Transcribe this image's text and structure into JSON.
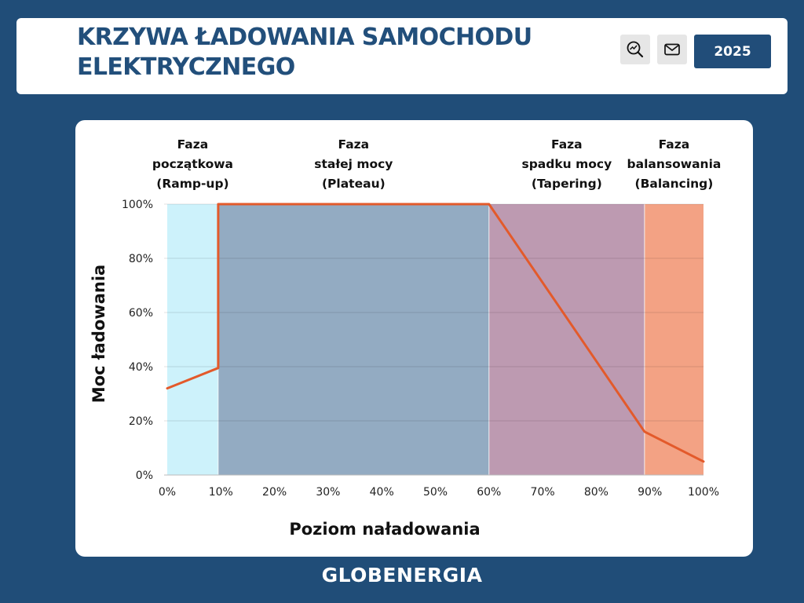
{
  "header": {
    "title": "KRZYWA ŁADOWANIA SAMOCHODU ELEKTRYCZNEGO",
    "year_label": "2025",
    "icons": [
      "search-chart-icon",
      "mail-icon"
    ]
  },
  "footer": {
    "logo_text": "GLOBENERGIA"
  },
  "colors": {
    "background": "#204d78",
    "title": "#224f7b",
    "line": "#e35a2b",
    "rampup": "#cdf2fb",
    "plateau": "#93abc2",
    "tapering": "#bd9ab1",
    "balancing": "#f3a284"
  },
  "chart_data": {
    "type": "line",
    "xlabel": "Poziom naładowania",
    "ylabel": "Moc  ładowania",
    "xlim": [
      0,
      100
    ],
    "ylim": [
      0,
      100
    ],
    "x_ticks": [
      "0%",
      "10%",
      "20%",
      "30%",
      "40%",
      "50%",
      "60%",
      "70%",
      "80%",
      "90%",
      "100%"
    ],
    "y_ticks": [
      "0%",
      "20%",
      "40%",
      "60%",
      "80%",
      "100%"
    ],
    "grid": "horizontal",
    "phases": [
      {
        "name": "Faza początkowa (Ramp-up)",
        "lines": [
          "Faza",
          "początkowa",
          "(Ramp-up)"
        ],
        "x_start": 0,
        "x_end": 9.5,
        "color": "#cdf2fb"
      },
      {
        "name": "Faza stałej mocy (Plateau)",
        "lines": [
          "Faza",
          "stałej mocy",
          "(Plateau)"
        ],
        "x_start": 9.5,
        "x_end": 60,
        "color": "#93abc2"
      },
      {
        "name": "Faza spadku mocy (Tapering)",
        "lines": [
          "Faza",
          "spadku mocy",
          "(Tapering)"
        ],
        "x_start": 60,
        "x_end": 89,
        "color": "#bd9ab1"
      },
      {
        "name": "Faza balansowania (Balancing)",
        "lines": [
          "Faza",
          "balansowania",
          "(Balancing)"
        ],
        "x_start": 89,
        "x_end": 100,
        "color": "#f3a284"
      }
    ],
    "series": [
      {
        "points": [
          [
            0,
            32
          ],
          [
            9.5,
            39.5
          ],
          [
            9.5,
            100
          ],
          [
            60,
            100
          ],
          [
            89,
            16
          ],
          [
            100,
            5
          ]
        ]
      }
    ]
  }
}
